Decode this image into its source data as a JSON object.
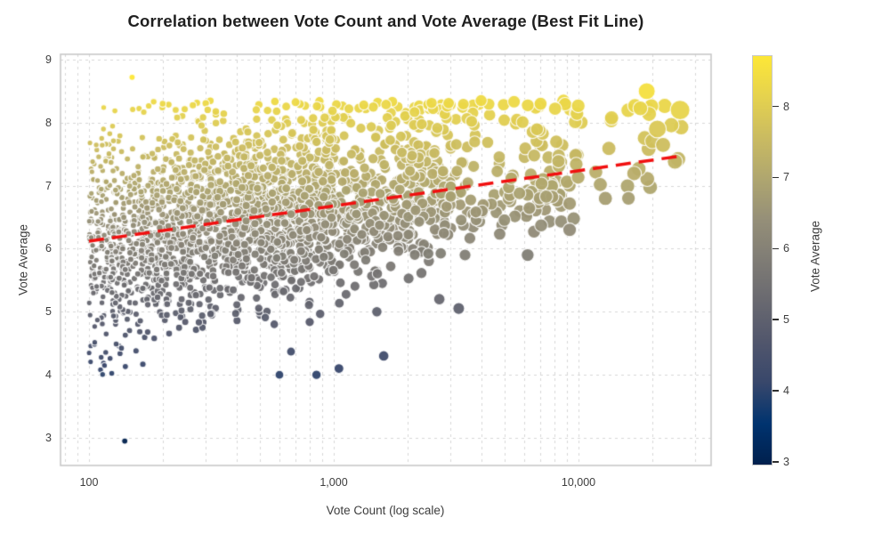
{
  "chart_data": {
    "type": "scatter",
    "title": "Correlation between Vote Count and Vote Average (Best Fit Line)",
    "xlabel": "Vote Count (log scale)",
    "ylabel": "Vote Average",
    "x_scale": "log",
    "x_range": [
      77,
      34000
    ],
    "y_range": [
      2.56,
      9.08
    ],
    "grid": "dashed",
    "legend": "none",
    "x_ticks": [
      {
        "value": 100,
        "label": "100"
      },
      {
        "value": 1000,
        "label": "1,000"
      },
      {
        "value": 10000,
        "label": "10,000"
      }
    ],
    "x_minor_gridlines": [
      80,
      90,
      200,
      300,
      400,
      500,
      600,
      700,
      800,
      900,
      2000,
      3000,
      4000,
      5000,
      6000,
      7000,
      8000,
      9000,
      20000,
      30000
    ],
    "y_ticks": [
      {
        "value": 3,
        "label": "3"
      },
      {
        "value": 4,
        "label": "4"
      },
      {
        "value": 5,
        "label": "5"
      },
      {
        "value": 6,
        "label": "6"
      },
      {
        "value": 7,
        "label": "7"
      },
      {
        "value": 8,
        "label": "8"
      },
      {
        "value": 9,
        "label": "9"
      }
    ],
    "colormap": {
      "name": "cividis",
      "vmin": 2.95,
      "vmax": 8.72,
      "stops": [
        [
          0.0,
          "#00204d"
        ],
        [
          0.1,
          "#00336f"
        ],
        [
          0.2,
          "#38476b"
        ],
        [
          0.3,
          "#51566c"
        ],
        [
          0.4,
          "#696970"
        ],
        [
          0.5,
          "#7f7c75"
        ],
        [
          0.6,
          "#958f78"
        ],
        [
          0.7,
          "#afa66f"
        ],
        [
          0.8,
          "#cabb61"
        ],
        [
          0.9,
          "#e5d24e"
        ],
        [
          1.0,
          "#fde737"
        ]
      ]
    },
    "colorbar": {
      "label": "Vote Average",
      "ticks": [
        {
          "value": 3,
          "label": "3"
        },
        {
          "value": 4,
          "label": "4"
        },
        {
          "value": 5,
          "label": "5"
        },
        {
          "value": 6,
          "label": "6"
        },
        {
          "value": 7,
          "label": "7"
        },
        {
          "value": 8,
          "label": "8"
        }
      ]
    },
    "trend_line": {
      "name": "best-fit-line",
      "color": "#f11010",
      "dash": [
        17,
        9
      ],
      "width": 3.5,
      "x1": 100,
      "y1": 6.12,
      "x2": 26000,
      "y2": 7.47
    },
    "point_style": {
      "edge_color": "#ffffff",
      "edge_width": 1.1,
      "opacity": 0.95
    },
    "highlight_points": [
      {
        "vote_count": 140,
        "vote_average": 2.95
      },
      {
        "vote_count": 150,
        "vote_average": 8.72
      },
      {
        "vote_count": 200,
        "vote_average": 8.3
      },
      {
        "vote_count": 600,
        "vote_average": 4.0
      },
      {
        "vote_count": 850,
        "vote_average": 4.0
      },
      {
        "vote_count": 1050,
        "vote_average": 4.1
      },
      {
        "vote_count": 1600,
        "vote_average": 4.3
      },
      {
        "vote_count": 1500,
        "vote_average": 5.0
      },
      {
        "vote_count": 2700,
        "vote_average": 5.2
      },
      {
        "vote_count": 6200,
        "vote_average": 5.9
      },
      {
        "vote_count": 9200,
        "vote_average": 6.3
      },
      {
        "vote_count": 16000,
        "vote_average": 6.8,
        "radius": 7.7
      },
      {
        "vote_count": 21000,
        "vote_average": 7.9,
        "radius": 10
      },
      {
        "vote_count": 19000,
        "vote_average": 8.5,
        "radius": 9.5
      },
      {
        "vote_count": 26000,
        "vote_average": 8.2,
        "radius": 11
      },
      {
        "vote_count": 4000,
        "vote_average": 8.35
      },
      {
        "vote_count": 7000,
        "vote_average": 8.3
      }
    ],
    "point_cloud": {
      "n": 2400,
      "seed": 1337,
      "cdf_u": [
        0,
        0.72,
        0.92,
        0.988,
        1
      ],
      "cdf_log10_count": [
        2.0,
        3.0,
        3.48,
        4.0,
        4.42
      ],
      "trend_base": 6.05,
      "trend_slope_per_decade": 0.57,
      "noise_sd_up": 0.85,
      "noise_sd_down_base": 0.8,
      "noise_sd_down_shrink_per_decade": 0.22,
      "va_cap": 8.35,
      "va_floor": 4.0,
      "radius_base": 3.1,
      "radius_per_decade": 2.3
    }
  },
  "colors": {
    "background": "#ffffff",
    "grid": "#d7d7d7",
    "frame": "#c9c9c9",
    "title_text": "#1f1f1f",
    "tick_text": "#3d3d3d",
    "trend": "#f11010",
    "colorbar_border": "#c9c9c9"
  }
}
